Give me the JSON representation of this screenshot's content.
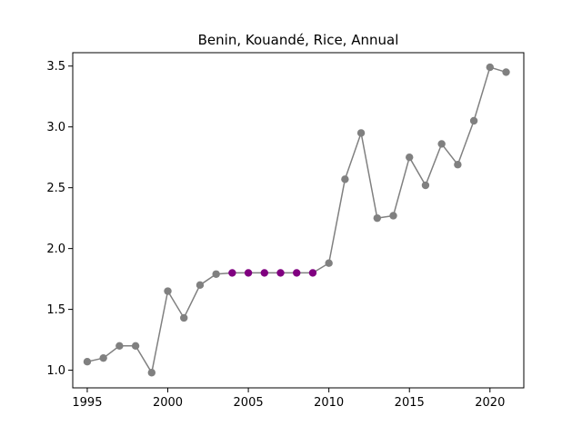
{
  "chart_data": {
    "type": "line",
    "title": "Benin, Kouandé, Rice, Annual",
    "xlabel": "",
    "ylabel": "",
    "xlim": [
      1994.1,
      2022.1
    ],
    "ylim": [
      0.855,
      3.61
    ],
    "x_ticks": [
      1995,
      2000,
      2005,
      2010,
      2015,
      2020
    ],
    "y_ticks": [
      1.0,
      1.5,
      2.0,
      2.5,
      3.0,
      3.5
    ],
    "x_tick_labels": [
      "1995",
      "2000",
      "2005",
      "2010",
      "2015",
      "2020"
    ],
    "y_tick_labels": [
      "1.0",
      "1.5",
      "2.0",
      "2.5",
      "3.0",
      "3.5"
    ],
    "grid": false,
    "legend": "none",
    "line_color": "#808080",
    "marker_color": "#808080",
    "highlight_color": "#800080",
    "series": [
      {
        "x": [
          1995,
          1996,
          1997,
          1998,
          1999,
          2000,
          2001,
          2002,
          2003,
          2004,
          2005,
          2006,
          2007,
          2008,
          2009,
          2010,
          2011,
          2012,
          2013,
          2014,
          2015,
          2016,
          2017,
          2018,
          2019,
          2020,
          2021
        ],
        "values": [
          1.07,
          1.1,
          1.2,
          1.2,
          0.98,
          1.65,
          1.43,
          1.7,
          1.79,
          1.8,
          1.8,
          1.8,
          1.8,
          1.8,
          1.8,
          1.88,
          2.57,
          2.95,
          2.25,
          2.27,
          2.75,
          2.52,
          2.86,
          2.69,
          3.05,
          3.49,
          3.45
        ],
        "highlighted_x": [
          2004,
          2005,
          2006,
          2007,
          2008,
          2009
        ]
      }
    ]
  }
}
